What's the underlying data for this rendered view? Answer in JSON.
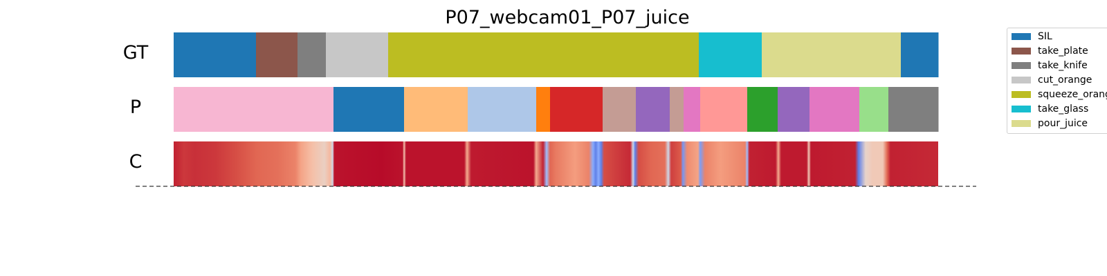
{
  "chart_data": {
    "type": "segmentation",
    "title": "P07_webcam01_P07_juice",
    "rows": [
      {
        "label": "GT",
        "segments": [
          {
            "start": 0,
            "end": 119,
            "action": "SIL",
            "color": "#1f77b4"
          },
          {
            "start": 119,
            "end": 179,
            "action": "take_plate",
            "color": "#8c564b"
          },
          {
            "start": 179,
            "end": 220,
            "action": "take_knife",
            "color": "#7f7f7f"
          },
          {
            "start": 220,
            "end": 310,
            "action": "cut_orange",
            "color": "#c7c7c7"
          },
          {
            "start": 310,
            "end": 759,
            "action": "squeeze_orange",
            "color": "#bcbd22"
          },
          {
            "start": 759,
            "end": 850,
            "action": "take_glass",
            "color": "#17becf"
          },
          {
            "start": 850,
            "end": 1051,
            "action": "pour_juice",
            "color": "#dbdb8d"
          },
          {
            "start": 1051,
            "end": 1105,
            "action": "SIL",
            "color": "#1f77b4"
          }
        ]
      },
      {
        "label": "P",
        "segments": [
          {
            "start": 0,
            "end": 231,
            "color": "#f7b6d2"
          },
          {
            "start": 231,
            "end": 333,
            "color": "#1f77b4"
          },
          {
            "start": 333,
            "end": 425,
            "color": "#ffbb78"
          },
          {
            "start": 425,
            "end": 524,
            "color": "#aec7e8"
          },
          {
            "start": 524,
            "end": 544,
            "color": "#ff7f0e"
          },
          {
            "start": 544,
            "end": 620,
            "color": "#d62728"
          },
          {
            "start": 620,
            "end": 668,
            "color": "#c49c94"
          },
          {
            "start": 668,
            "end": 717,
            "color": "#9467bd"
          },
          {
            "start": 717,
            "end": 737,
            "color": "#c49c94"
          },
          {
            "start": 737,
            "end": 761,
            "color": "#e377c2"
          },
          {
            "start": 761,
            "end": 829,
            "color": "#ff9896"
          },
          {
            "start": 829,
            "end": 873,
            "color": "#2ca02c"
          },
          {
            "start": 873,
            "end": 919,
            "color": "#9467bd"
          },
          {
            "start": 919,
            "end": 991,
            "color": "#e377c2"
          },
          {
            "start": 991,
            "end": 1033,
            "color": "#98df8a"
          },
          {
            "start": 1033,
            "end": 1105,
            "color": "#7f7f7f"
          }
        ]
      },
      {
        "label": "C",
        "colormap": "coolwarm",
        "stops": [
          [
            0,
            0.96
          ],
          [
            15,
            0.93
          ],
          [
            30,
            0.94
          ],
          [
            60,
            0.93
          ],
          [
            90,
            0.9
          ],
          [
            120,
            0.86
          ],
          [
            150,
            0.84
          ],
          [
            176,
            0.8
          ],
          [
            184,
            0.72
          ],
          [
            200,
            0.64
          ],
          [
            218,
            0.57
          ],
          [
            226,
            0.66
          ],
          [
            230,
            0.45
          ],
          [
            232,
            0.98
          ],
          [
            300,
            0.99
          ],
          [
            331,
            0.98
          ],
          [
            333,
            0.62
          ],
          [
            336,
            0.98
          ],
          [
            420,
            0.98
          ],
          [
            424,
            0.7
          ],
          [
            430,
            0.97
          ],
          [
            520,
            0.98
          ],
          [
            524,
            0.7
          ],
          [
            534,
            0.96
          ],
          [
            539,
            0.3
          ],
          [
            544,
            0.86
          ],
          [
            552,
            0.82
          ],
          [
            580,
            0.74
          ],
          [
            600,
            0.8
          ],
          [
            606,
            0.24
          ],
          [
            610,
            0.12
          ],
          [
            614,
            0.24
          ],
          [
            618,
            0.12
          ],
          [
            622,
            0.9
          ],
          [
            660,
            0.95
          ],
          [
            664,
            0.45
          ],
          [
            667,
            0.12
          ],
          [
            672,
            0.9
          ],
          [
            690,
            0.86
          ],
          [
            710,
            0.84
          ],
          [
            715,
            0.45
          ],
          [
            719,
            0.92
          ],
          [
            733,
            0.88
          ],
          [
            736,
            0.18
          ],
          [
            742,
            0.78
          ],
          [
            758,
            0.72
          ],
          [
            761,
            0.2
          ],
          [
            768,
            0.8
          ],
          [
            790,
            0.74
          ],
          [
            826,
            0.8
          ],
          [
            829,
            0.3
          ],
          [
            832,
            0.96
          ],
          [
            870,
            0.97
          ],
          [
            874,
            0.7
          ],
          [
            878,
            0.97
          ],
          [
            915,
            0.97
          ],
          [
            918,
            0.6
          ],
          [
            921,
            0.97
          ],
          [
            985,
            0.96
          ],
          [
            990,
            0.12
          ],
          [
            1000,
            0.55
          ],
          [
            1010,
            0.6
          ],
          [
            1025,
            0.6
          ],
          [
            1031,
            0.85
          ],
          [
            1036,
            0.96
          ],
          [
            1105,
            0.95
          ]
        ]
      }
    ],
    "frame_range": [
      0,
      1105
    ],
    "legend": {
      "placement": "right",
      "entries": [
        {
          "label": "SIL",
          "color": "#1f77b4"
        },
        {
          "label": "take_plate",
          "color": "#8c564b"
        },
        {
          "label": "take_knife",
          "color": "#7f7f7f"
        },
        {
          "label": "cut_orange",
          "color": "#c7c7c7"
        },
        {
          "label": "squeeze_orange",
          "color": "#bcbd22"
        },
        {
          "label": "take_glass",
          "color": "#17becf"
        },
        {
          "label": "pour_juice",
          "color": "#dbdb8d"
        }
      ]
    },
    "baseline": "dashed"
  }
}
